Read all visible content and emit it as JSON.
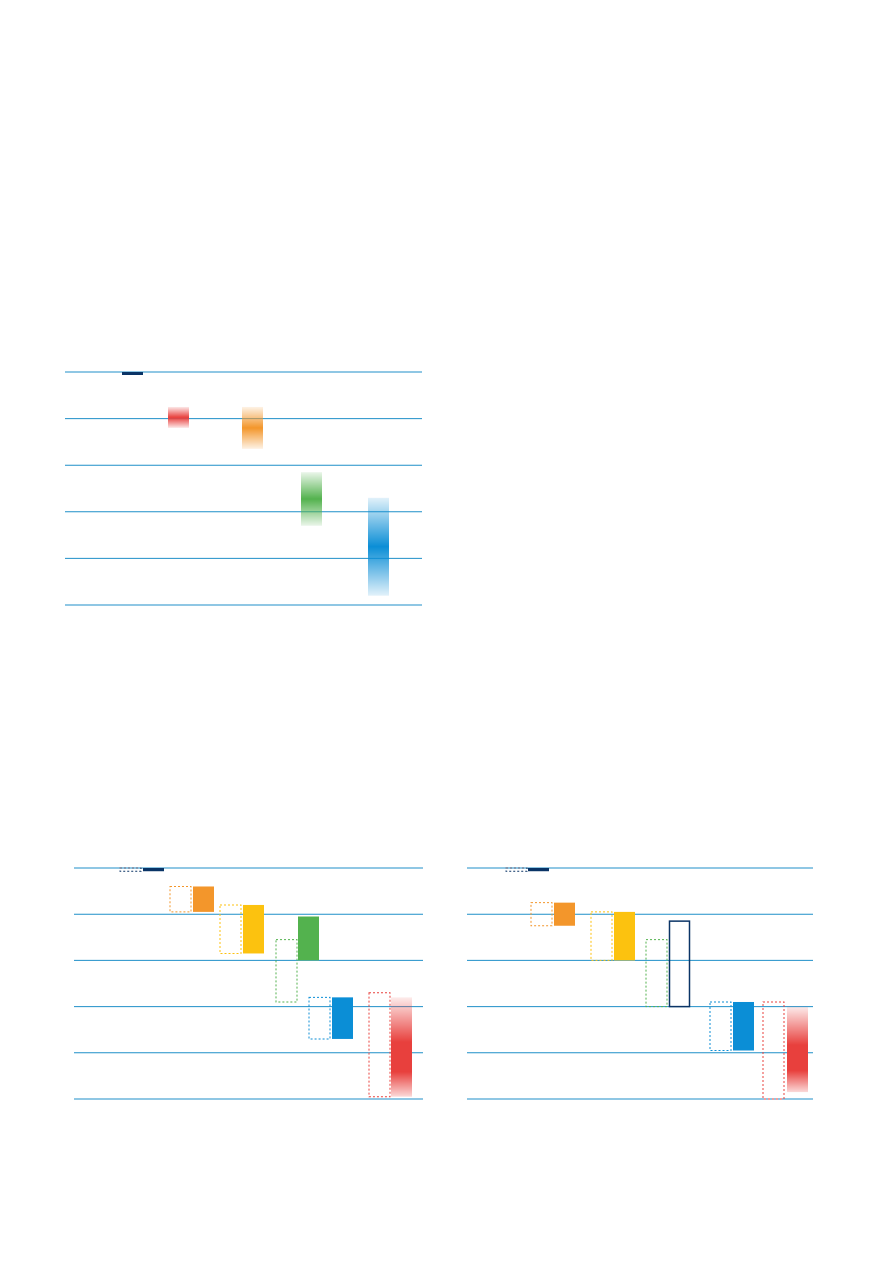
{
  "colors": {
    "grid": "#1f8fc8",
    "navy": "#0a3466",
    "red": "#e8403d",
    "orange": "#f3962b",
    "yellow": "#fcc20f",
    "green": "#53b24e",
    "blue": "#0b8ed6"
  },
  "chart_data": [
    {
      "type": "bar",
      "variant": "floating-gradient-range",
      "grid": true,
      "gridlines": 6,
      "title": "",
      "xlabel": "",
      "ylabel": "",
      "ylim": [
        0,
        5
      ],
      "series": [
        {
          "color": "navy",
          "low": 4.95,
          "high": 5.0,
          "mid": 4.975,
          "gradient": false
        },
        {
          "color": "red",
          "low": 3.8,
          "high": 4.25,
          "mid": 4.03,
          "gradient": true
        },
        {
          "color": "orange",
          "low": 3.35,
          "high": 4.25,
          "mid": 3.8,
          "gradient": true
        },
        {
          "color": "green",
          "low": 1.7,
          "high": 2.85,
          "mid": 2.28,
          "gradient": true
        },
        {
          "color": "blue",
          "low": 0.2,
          "high": 2.3,
          "mid": 1.3,
          "gradient": true
        }
      ]
    },
    {
      "type": "bar",
      "variant": "floating-range-with-previous",
      "grid": true,
      "gridlines": 6,
      "title": "",
      "xlabel": "",
      "ylabel": "",
      "ylim": [
        0,
        5
      ],
      "series": [
        {
          "color": "navy",
          "prev": [
            4.93,
            5.0
          ],
          "curr": [
            4.93,
            5.0
          ]
        },
        {
          "color": "orange",
          "prev": [
            4.05,
            4.6
          ],
          "curr": [
            4.05,
            4.6
          ]
        },
        {
          "color": "yellow",
          "prev": [
            3.15,
            4.2
          ],
          "curr": [
            3.15,
            4.2
          ]
        },
        {
          "color": "green",
          "prev": [
            2.1,
            3.45
          ],
          "curr": [
            3.0,
            3.95
          ]
        },
        {
          "color": "blue",
          "prev": [
            1.3,
            2.2
          ],
          "curr": [
            1.3,
            2.2
          ]
        },
        {
          "color": "red",
          "prev": [
            0.05,
            2.3
          ],
          "curr": [
            0.05,
            2.2
          ],
          "gradient": true
        }
      ]
    },
    {
      "type": "bar",
      "variant": "floating-range-with-previous",
      "grid": true,
      "gridlines": 6,
      "title": "",
      "xlabel": "",
      "ylabel": "",
      "ylim": [
        0,
        5
      ],
      "series": [
        {
          "color": "navy",
          "prev": [
            4.93,
            5.0
          ],
          "curr": [
            4.93,
            5.0
          ]
        },
        {
          "color": "orange",
          "prev": [
            3.75,
            4.25
          ],
          "curr": [
            3.75,
            4.25
          ]
        },
        {
          "color": "yellow",
          "prev": [
            3.0,
            4.05
          ],
          "curr": [
            3.0,
            4.05
          ]
        },
        {
          "color": "green",
          "prev": [
            2.0,
            3.45
          ],
          "curr": [
            2.0,
            3.85
          ],
          "outlineOnly": true,
          "outlineColor": "navy"
        },
        {
          "color": "blue",
          "prev": [
            1.05,
            2.1
          ],
          "curr": [
            1.05,
            2.1
          ]
        },
        {
          "color": "red",
          "prev": [
            0.0,
            2.1
          ],
          "curr": [
            0.15,
            2.0
          ],
          "gradient": true
        }
      ]
    }
  ]
}
